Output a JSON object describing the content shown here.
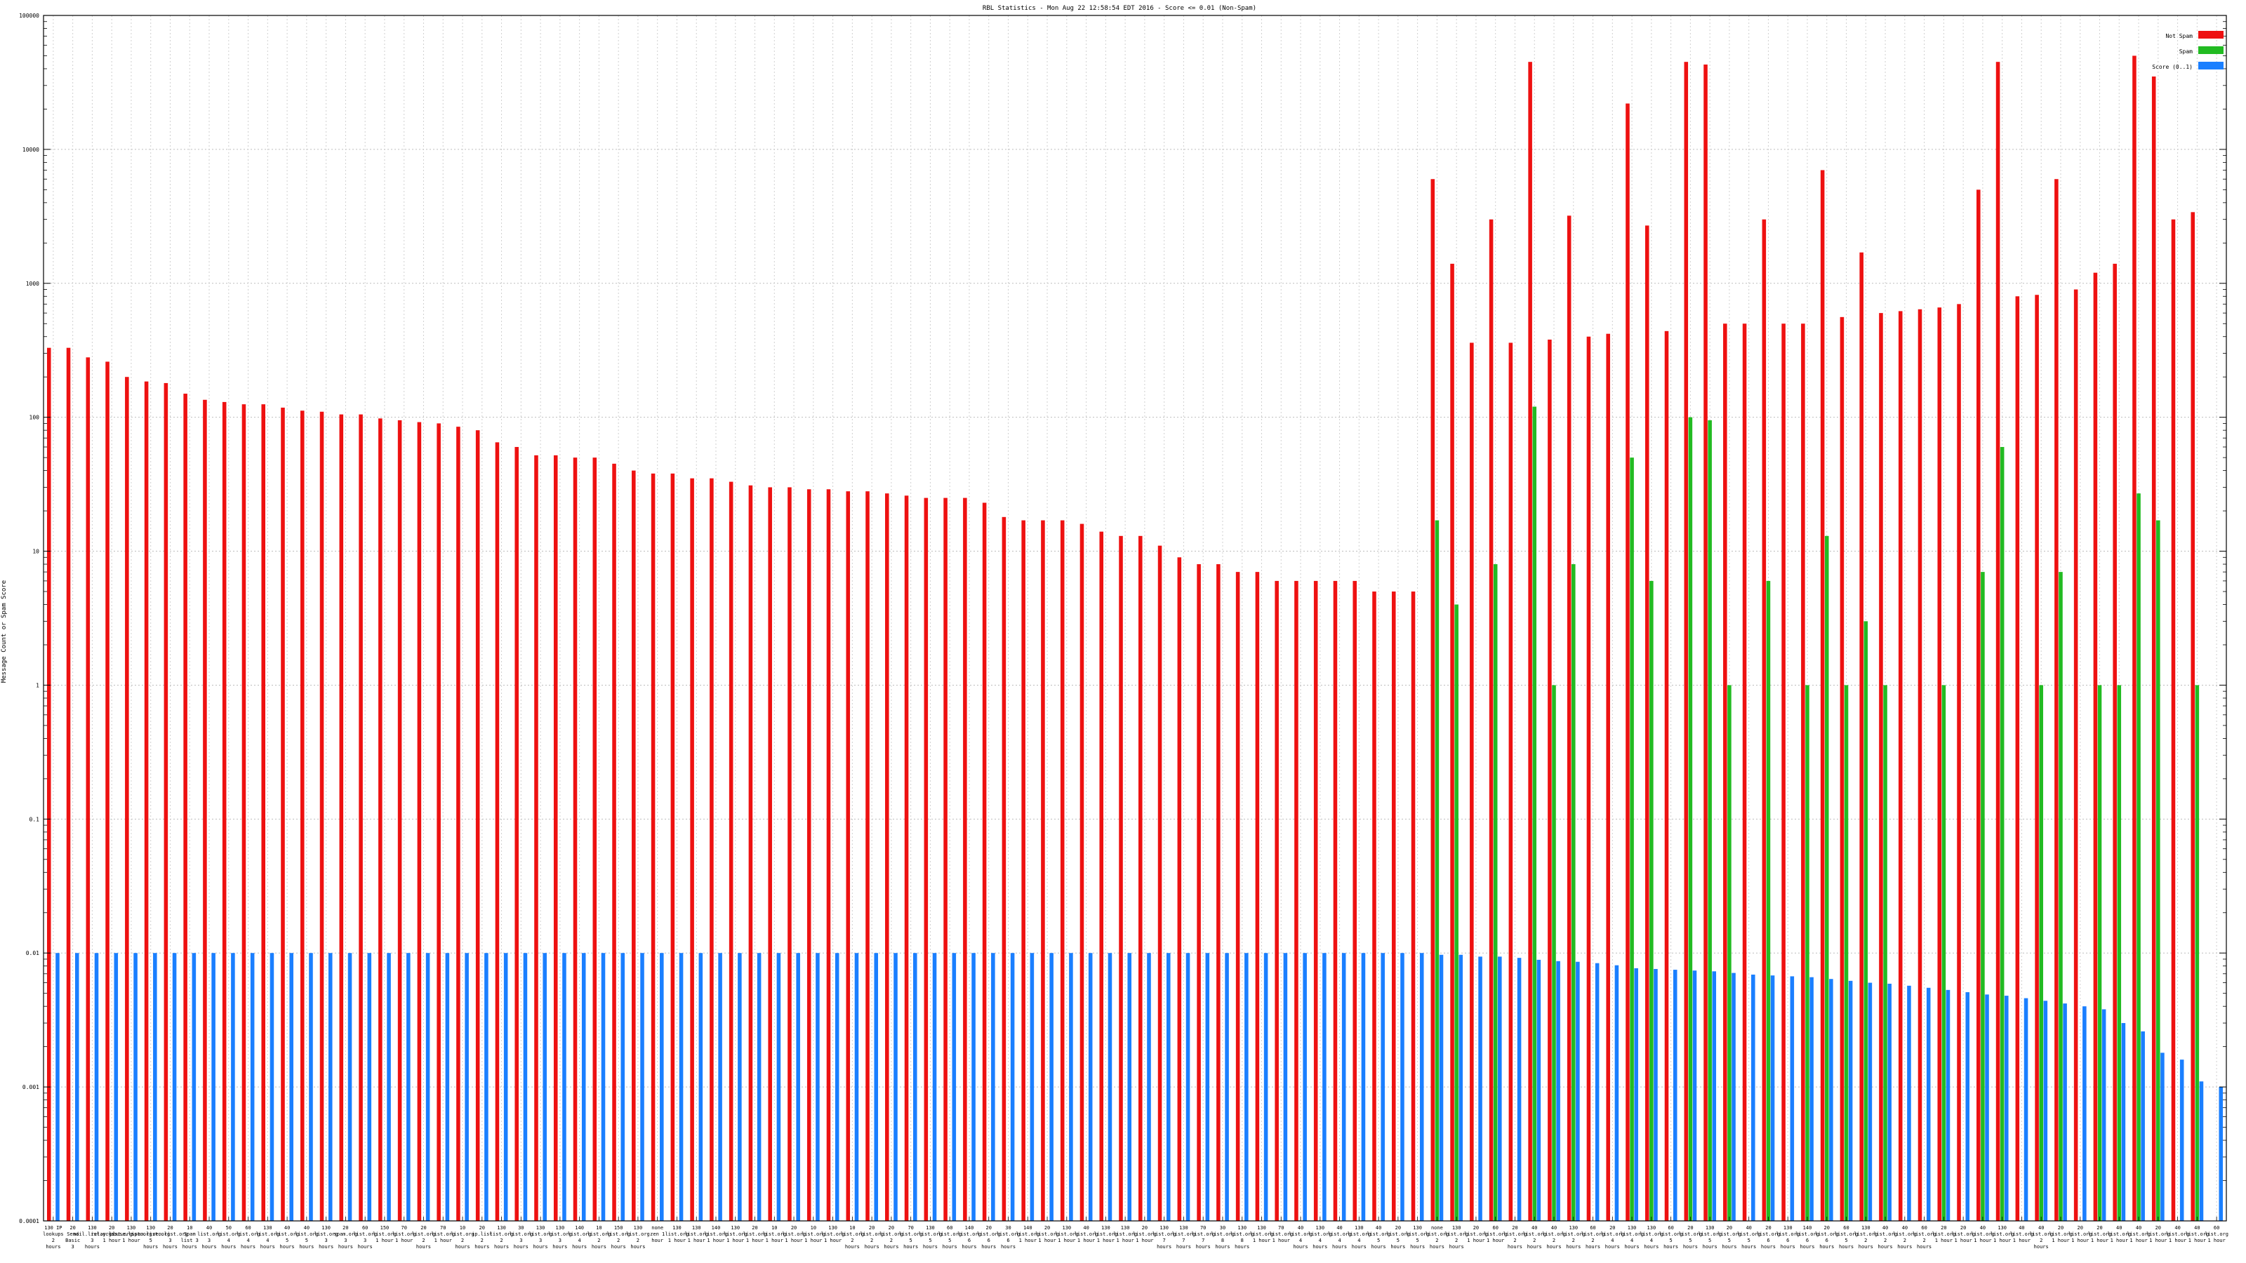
{
  "chart_data": {
    "type": "bar",
    "title": "RBL Statistics - Mon Aug 22 12:58:54 EDT 2016 - Score <= 0.01 (Non-Spam)",
    "ylabel": "Message Count or Spam Score",
    "xlabel": "",
    "yscale": "log",
    "ylim": [
      0.0001,
      100000
    ],
    "yticks": [
      "0.0001",
      "0.001",
      "0.01",
      "0.1",
      "1",
      "10",
      "100",
      "1000",
      "10000",
      "100000"
    ],
    "grid": true,
    "legend_position": "top-right",
    "colors": {
      "not_spam": "#ee1111",
      "spam": "#22bb22",
      "score": "#1a7fff"
    },
    "categories": [
      "c1",
      "c2",
      "c3",
      "c4",
      "c5",
      "c6",
      "c7",
      "c8",
      "c9",
      "c10",
      "c11",
      "c12",
      "c13",
      "c14",
      "c15",
      "c16",
      "c17",
      "c18",
      "c19",
      "c20",
      "c21",
      "c22",
      "c23",
      "c24",
      "c25",
      "c26",
      "c27",
      "c28",
      "c29",
      "c30",
      "c31",
      "c32",
      "c33",
      "c34",
      "c35",
      "c36",
      "c37",
      "c38",
      "c39",
      "c40",
      "c41",
      "c42",
      "c43",
      "c44",
      "c45",
      "c46",
      "c47",
      "c48",
      "c49",
      "c50",
      "c51",
      "c52",
      "c53",
      "c54",
      "c55",
      "c56",
      "c57",
      "c58",
      "c59",
      "c60",
      "c61",
      "c62",
      "c63",
      "c64",
      "c65",
      "c66",
      "c67",
      "c68",
      "c69",
      "c70",
      "c71",
      "c72",
      "c73",
      "c74",
      "c75",
      "c76",
      "c77",
      "c78",
      "c79",
      "c80",
      "c81",
      "c82",
      "c83",
      "c84",
      "c85",
      "c86",
      "c87",
      "c88",
      "c89",
      "c90",
      "c91",
      "c92",
      "c93",
      "c94",
      "c95",
      "c96",
      "c97",
      "c98",
      "c99",
      "c100",
      "c101",
      "c102",
      "c103",
      "c104",
      "c105",
      "c106",
      "c107",
      "c108",
      "c109",
      "c110",
      "c111",
      "c112"
    ],
    "category_labels": [
      "130 IP lookups 2 hours",
      "20 Send Basic 3 hours",
      "130 mail.list.org 3 hours",
      "20 relay.list.org 1 hour",
      "130 abuse.list.org 1 hour",
      "130 spam.list.org 5 hours",
      "20 zen.list.org 3 hours",
      "10 Spam list 3 hours",
      "40 list.org 3 hours",
      "50 list.org 4 hours",
      "60 list.org 4 hours",
      "130 list.org 4 hours",
      "40 list.org 5 hours",
      "40 list.org 5 hours",
      "130 list.org 3 hours",
      "20 spam.org 3 hours",
      "60 list.org 3 hours",
      "150 list.org 1 hour",
      "70 list.org 1 hour",
      "20 list.org 2 hours",
      "70 list.org 1 hour",
      "10 list.org 2 hours",
      "20 ip.list 2 hours",
      "130 list.org 2 hours",
      "30 list.org 3 hours",
      "130 list.org 3 hours",
      "130 list.org 3 hours",
      "140 list.org 4 hours",
      "10 list.org 2 hours",
      "150 list.org 2 hours",
      "130 list.org 2 hours",
      "none zen 1 hour",
      "130 list.org 1 hour",
      "130 list.org 1 hour",
      "140 list.org 1 hour",
      "130 list.org 1 hour",
      "20 list.org 1 hour",
      "10 list.org 1 hour",
      "20 list.org 1 hour",
      "10 list.org 1 hour",
      "130 list.org 1 hour",
      "10 list.org 2 hours",
      "20 list.org 2 hours",
      "20 list.org 2 hours",
      "70 list.org 5 hours",
      "130 list.org 5 hours",
      "60 list.org 5 hours",
      "140 list.org 6 hours",
      "20 list.org 6 hours",
      "30 list.org 6 hours",
      "140 list.org 1 hour",
      "20 list.org 1 hour",
      "130 list.org 1 hour",
      "40 list.org 1 hour",
      "130 list.org 1 hour",
      "130 list.org 1 hour",
      "20 list.org 1 hour",
      "130 list.org 7 hours",
      "130 list.org 7 hours",
      "70 list.org 7 hours",
      "30 list.org 8 hours",
      "130 list.org 8 hours",
      "130 list.org 1 hour",
      "70 list.org 1 hour",
      "40 list.org 4 hours",
      "130 list.org 4 hours",
      "40 list.org 4 hours",
      "130 list.org 4 hours",
      "40 list.org 5 hours",
      "20 list.org 5 hours",
      "130 list.org 5 hours",
      "none list.org 2 hours",
      "130 list.org 2 hours",
      "20 list.org 1 hour",
      "60 list.org 1 hour",
      "20 list.org 2 hours",
      "40 list.org 2 hours",
      "40 list.org 2 hours",
      "130 list.org 2 hours",
      "60 list.org 2 hours",
      "20 list.org 4 hours",
      "130 list.org 4 hours",
      "130 list.org 4 hours",
      "60 list.org 5 hours",
      "20 list.org 5 hours",
      "130 list.org 5 hours",
      "20 list.org 5 hours",
      "40 list.org 5 hours",
      "20 list.org 6 hours",
      "130 list.org 6 hours",
      "140 list.org 6 hours",
      "20 list.org 6 hours",
      "60 list.org 5 hours",
      "130 list.org 2 hours",
      "40 list.org 2 hours",
      "40 list.org 2 hours",
      "60 list.org 2 hours",
      "20 list.org 1 hour",
      "20 list.org 1 hour",
      "40 list.org 1 hour",
      "130 list.org 1 hour",
      "40 list.org 1 hour",
      "40 list.org 2 hours",
      "20 list.org 1 hour",
      "20 list.org 1 hour",
      "20 list.org 1 hour",
      "40 list.org 1 hour",
      "40 list.org 1 hour",
      "20 list.org 1 hour",
      "40 list.org 1 hour",
      "40 list.org 1 hour",
      "60 list.org 1 hour"
    ],
    "series": [
      {
        "name": "Not Spam",
        "values": [
          330,
          330,
          280,
          260,
          200,
          185,
          180,
          150,
          135,
          130,
          125,
          125,
          118,
          112,
          110,
          105,
          105,
          98,
          95,
          92,
          90,
          85,
          80,
          65,
          60,
          52,
          52,
          50,
          50,
          45,
          40,
          38,
          38,
          35,
          35,
          33,
          31,
          30,
          30,
          29,
          29,
          28,
          28,
          27,
          26,
          25,
          25,
          25,
          23,
          18,
          17,
          17,
          17,
          16,
          14,
          13,
          13,
          11,
          9,
          8,
          8,
          7,
          7,
          6,
          6,
          6,
          6,
          6,
          5,
          5,
          5,
          6000,
          1400,
          360,
          3000,
          360,
          45000,
          380,
          3200,
          400,
          420,
          22000,
          2700,
          440,
          45000,
          43000,
          500,
          500,
          3000,
          500,
          500,
          7000,
          560,
          1700,
          600,
          620,
          640,
          660,
          700,
          5000,
          45000,
          800,
          820,
          6000,
          900,
          1200,
          1400,
          50000,
          35000,
          3000,
          3400,
          0
        ]
      },
      {
        "name": "Spam",
        "values": [
          0,
          0,
          0,
          0,
          0,
          0,
          0,
          0,
          0,
          0,
          0,
          0,
          0,
          0,
          0,
          0,
          0,
          0,
          0,
          0,
          0,
          0,
          0,
          0,
          0,
          0,
          0,
          0,
          0,
          0,
          0,
          0,
          0,
          0,
          0,
          0,
          0,
          0,
          0,
          0,
          0,
          0,
          0,
          0,
          0,
          0,
          0,
          0,
          0,
          0,
          0,
          0,
          0,
          0,
          0,
          0,
          0,
          0,
          0,
          0,
          0,
          0,
          0,
          0,
          0,
          0,
          0,
          0,
          0,
          0,
          0,
          17,
          4,
          0,
          8,
          0,
          120,
          1,
          8,
          0,
          0,
          50,
          6,
          0,
          100,
          95,
          1,
          0,
          6,
          0,
          1,
          13,
          1,
          3,
          1,
          0,
          0,
          1,
          0,
          7,
          60,
          0,
          1,
          7,
          0,
          1,
          1,
          27,
          17,
          0,
          1,
          0
        ]
      },
      {
        "name": "Score (0..1)",
        "values": [
          0.01,
          0.01,
          0.01,
          0.01,
          0.01,
          0.01,
          0.01,
          0.01,
          0.01,
          0.01,
          0.01,
          0.01,
          0.01,
          0.01,
          0.01,
          0.01,
          0.01,
          0.01,
          0.01,
          0.01,
          0.01,
          0.01,
          0.01,
          0.01,
          0.01,
          0.01,
          0.01,
          0.01,
          0.01,
          0.01,
          0.01,
          0.01,
          0.01,
          0.01,
          0.01,
          0.01,
          0.01,
          0.01,
          0.01,
          0.01,
          0.01,
          0.01,
          0.01,
          0.01,
          0.01,
          0.01,
          0.01,
          0.01,
          0.01,
          0.01,
          0.01,
          0.01,
          0.01,
          0.01,
          0.01,
          0.01,
          0.01,
          0.01,
          0.01,
          0.01,
          0.01,
          0.01,
          0.01,
          0.01,
          0.01,
          0.01,
          0.01,
          0.01,
          0.01,
          0.01,
          0.01,
          0.0097,
          0.0097,
          0.0094,
          0.0094,
          0.0092,
          0.0089,
          0.0087,
          0.0086,
          0.0084,
          0.0081,
          0.0077,
          0.0076,
          0.0075,
          0.0074,
          0.0073,
          0.0071,
          0.0069,
          0.0068,
          0.0067,
          0.0066,
          0.0064,
          0.0062,
          0.006,
          0.0059,
          0.0057,
          0.0055,
          0.0053,
          0.0051,
          0.0049,
          0.0048,
          0.0046,
          0.0044,
          0.0042,
          0.004,
          0.0038,
          0.003,
          0.0026,
          0.0018,
          0.0016,
          0.0011,
          0.001
        ]
      }
    ]
  }
}
